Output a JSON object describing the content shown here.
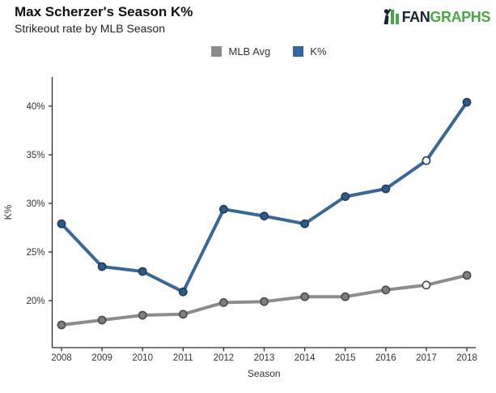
{
  "header": {
    "title": "Max Scherzer's Season K%",
    "subtitle": "Strikeout rate by MLB Season"
  },
  "logo": {
    "brand_fan": "FAN",
    "brand_graphs": "GRAPHS",
    "green": "#4AA746",
    "dark": "#16242F"
  },
  "legend": {
    "items": [
      {
        "label": "MLB Avg",
        "color": "#8C8C8C"
      },
      {
        "label": "K%",
        "color": "#33689E"
      }
    ]
  },
  "chart_data": {
    "type": "line",
    "title": "Max Scherzer's Season K%",
    "subtitle": "Strikeout rate by MLB Season",
    "xlabel": "Season",
    "ylabel": "K%",
    "categories": [
      "2008",
      "2009",
      "2010",
      "2011",
      "2012",
      "2013",
      "2014",
      "2015",
      "2016",
      "2017",
      "2018"
    ],
    "yticks": [
      20,
      25,
      30,
      35,
      40
    ],
    "ytick_suffix": "%",
    "ylim": [
      15.2,
      43
    ],
    "grid": false,
    "legend_position": "top-center",
    "highlight_index": 9,
    "highlight_year": "2017",
    "highlight_marker_fill": "#FFFFFF",
    "axis_color": "#2B2B2B",
    "tick_label_color": "#333333",
    "series": [
      {
        "name": "MLB Avg",
        "slug": "mlb-avg",
        "line_color": "#8C8C8C",
        "marker_fill": "#7E7E7E",
        "marker_stroke": "#4A4A4A",
        "values": [
          17.5,
          18.0,
          18.5,
          18.6,
          19.8,
          19.9,
          20.4,
          20.4,
          21.1,
          21.6,
          22.6
        ]
      },
      {
        "name": "K%",
        "slug": "k-pct",
        "line_color": "#3A6795",
        "marker_fill": "#2F5C8A",
        "marker_stroke": "#1E3C5C",
        "values": [
          27.9,
          23.5,
          23.0,
          20.9,
          29.4,
          28.7,
          27.9,
          30.7,
          31.5,
          34.4,
          40.4
        ]
      }
    ]
  }
}
